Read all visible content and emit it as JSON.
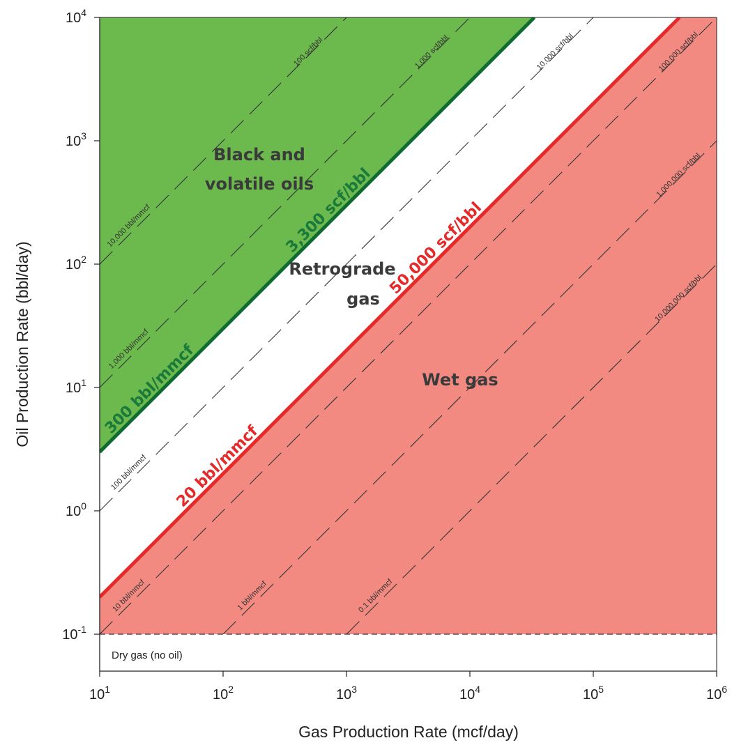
{
  "chart_data": {
    "type": "line",
    "xlabel": "Gas Production Rate (mcf/day)",
    "ylabel": "Oil Production Rate (bbl/day)",
    "x_scale": "log",
    "y_scale": "log",
    "xlim": [
      10,
      1000000
    ],
    "ylim": [
      0.1,
      10000
    ],
    "x_tick_labels": [
      {
        "base": "10",
        "exp": "1"
      },
      {
        "base": "10",
        "exp": "2"
      },
      {
        "base": "10",
        "exp": "3"
      },
      {
        "base": "10",
        "exp": "4"
      },
      {
        "base": "10",
        "exp": "5"
      },
      {
        "base": "10",
        "exp": "6"
      }
    ],
    "y_tick_labels": [
      {
        "base": "10",
        "exp": "4"
      },
      {
        "base": "10",
        "exp": "3"
      },
      {
        "base": "10",
        "exp": "2"
      },
      {
        "base": "10",
        "exp": "1"
      },
      {
        "base": "10",
        "exp": "0"
      },
      {
        "base": "10",
        "exp": "-1"
      }
    ],
    "grid": false,
    "colors": {
      "oil_region": "#6cb94e",
      "wet_gas_region": "#f38a82",
      "oil_boundary": "#0f6b31",
      "wet_gas_boundary": "#e62a2a",
      "oil_label": "#1a7a3a",
      "wet_gas_label": "#e62a2a",
      "guide_line": "#333333"
    },
    "boundaries": [
      {
        "name": "oil_boundary",
        "ratio_bbl_per_mcf": 0.3,
        "label_top": "3,300 scf/bbl",
        "label_bottom": "300 bbl/mmcf",
        "color": "#0f6b31"
      },
      {
        "name": "wet_gas_boundary",
        "ratio_bbl_per_mcf": 0.02,
        "label_top": "50,000 scf/bbl",
        "label_bottom": "20 bbl/mmcf",
        "color": "#e62a2a"
      }
    ],
    "guide_lines": [
      {
        "ratio_bbl_per_mcf": 10,
        "scf_label": "100 scf/bbl",
        "bbl_label": "10,000 bbl/mmcf"
      },
      {
        "ratio_bbl_per_mcf": 1,
        "scf_label": "1,000 scf/bbl",
        "bbl_label": "1,000 bbl/mmcf"
      },
      {
        "ratio_bbl_per_mcf": 0.1,
        "scf_label": "10,000 scf/bbl",
        "bbl_label": "100 bbl/mmcf"
      },
      {
        "ratio_bbl_per_mcf": 0.01,
        "scf_label": "100,000 scf/bbl",
        "bbl_label": "10 bbl/mmcf"
      },
      {
        "ratio_bbl_per_mcf": 0.001,
        "scf_label": "1,000,000 scf/bbl",
        "bbl_label": "1 bbl/mmcf"
      },
      {
        "ratio_bbl_per_mcf": 0.0001,
        "scf_label": "10,000,000 scf/bbl",
        "bbl_label": "0.1 bbl/mmcf"
      }
    ],
    "dry_gas_threshold_bbl_per_day": 0.1,
    "regions": {
      "oil": {
        "line1": "Black and",
        "line2": "volatile oils"
      },
      "retrograde": {
        "line1": "Retrograde",
        "line2": "gas"
      },
      "wet": {
        "line1": "Wet gas"
      },
      "dry": {
        "line1": "Dry gas (no oil)"
      }
    }
  }
}
